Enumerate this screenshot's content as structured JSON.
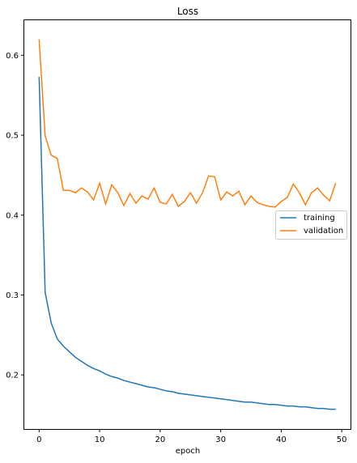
{
  "chart_data": {
    "type": "line",
    "title": "Loss",
    "xlabel": "epoch",
    "ylabel": "",
    "xlim": [
      -2.45,
      51.45
    ],
    "ylim": [
      0.1323,
      0.6439
    ],
    "xticks": [
      0,
      10,
      20,
      30,
      40,
      50
    ],
    "yticks": [
      0.2,
      0.3,
      0.4,
      0.5,
      0.6
    ],
    "ytick_labels": [
      "0.2",
      "0.3",
      "0.4",
      "0.5",
      "0.6"
    ],
    "grid": false,
    "legend": {
      "placement": "center-right",
      "entries": [
        "training",
        "validation"
      ]
    },
    "x": [
      0,
      1,
      2,
      3,
      4,
      5,
      6,
      7,
      8,
      9,
      10,
      11,
      12,
      13,
      14,
      15,
      16,
      17,
      18,
      19,
      20,
      21,
      22,
      23,
      24,
      25,
      26,
      27,
      28,
      29,
      30,
      31,
      32,
      33,
      34,
      35,
      36,
      37,
      38,
      39,
      40,
      41,
      42,
      43,
      44,
      45,
      46,
      47,
      48,
      49
    ],
    "series": [
      {
        "name": "training",
        "color": "#1f77b4",
        "values": [
          0.573,
          0.303,
          0.265,
          0.245,
          0.236,
          0.229,
          0.222,
          0.217,
          0.212,
          0.208,
          0.205,
          0.201,
          0.198,
          0.196,
          0.193,
          0.191,
          0.189,
          0.187,
          0.185,
          0.184,
          0.182,
          0.18,
          0.179,
          0.177,
          0.176,
          0.175,
          0.174,
          0.173,
          0.172,
          0.171,
          0.17,
          0.169,
          0.168,
          0.167,
          0.166,
          0.166,
          0.165,
          0.164,
          0.163,
          0.163,
          0.162,
          0.161,
          0.161,
          0.16,
          0.16,
          0.159,
          0.158,
          0.158,
          0.157,
          0.157
        ]
      },
      {
        "name": "validation",
        "color": "#ff7f0e",
        "values": [
          0.62,
          0.499,
          0.475,
          0.471,
          0.431,
          0.431,
          0.428,
          0.434,
          0.429,
          0.419,
          0.44,
          0.414,
          0.438,
          0.428,
          0.412,
          0.427,
          0.415,
          0.424,
          0.42,
          0.434,
          0.416,
          0.414,
          0.426,
          0.411,
          0.417,
          0.428,
          0.415,
          0.428,
          0.449,
          0.448,
          0.419,
          0.429,
          0.424,
          0.43,
          0.413,
          0.424,
          0.416,
          0.413,
          0.411,
          0.41,
          0.417,
          0.422,
          0.439,
          0.428,
          0.413,
          0.428,
          0.434,
          0.425,
          0.418,
          0.44
        ]
      }
    ]
  }
}
